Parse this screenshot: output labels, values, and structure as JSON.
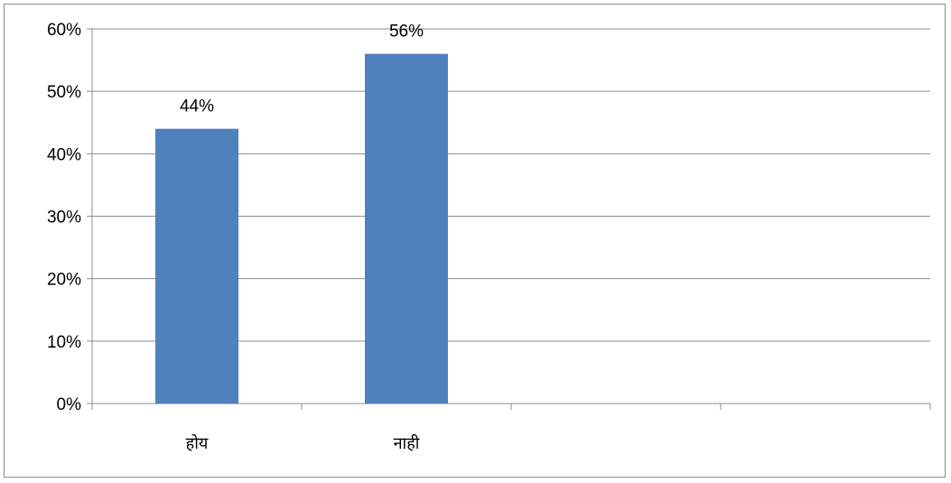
{
  "chart_data": {
    "type": "bar",
    "categories": [
      "होय",
      "नाही"
    ],
    "values": [
      44,
      56
    ],
    "data_labels": [
      "44%",
      "56%"
    ],
    "slots": 4,
    "title": "",
    "xlabel": "",
    "ylabel": "",
    "ylim": [
      0,
      60
    ],
    "yticks": [
      0,
      10,
      20,
      30,
      40,
      50,
      60
    ],
    "ytick_labels": [
      "0%",
      "10%",
      "20%",
      "30%",
      "40%",
      "50%",
      "60%"
    ],
    "grid": true,
    "legend": "none",
    "bar_color": "#4f81bd"
  }
}
